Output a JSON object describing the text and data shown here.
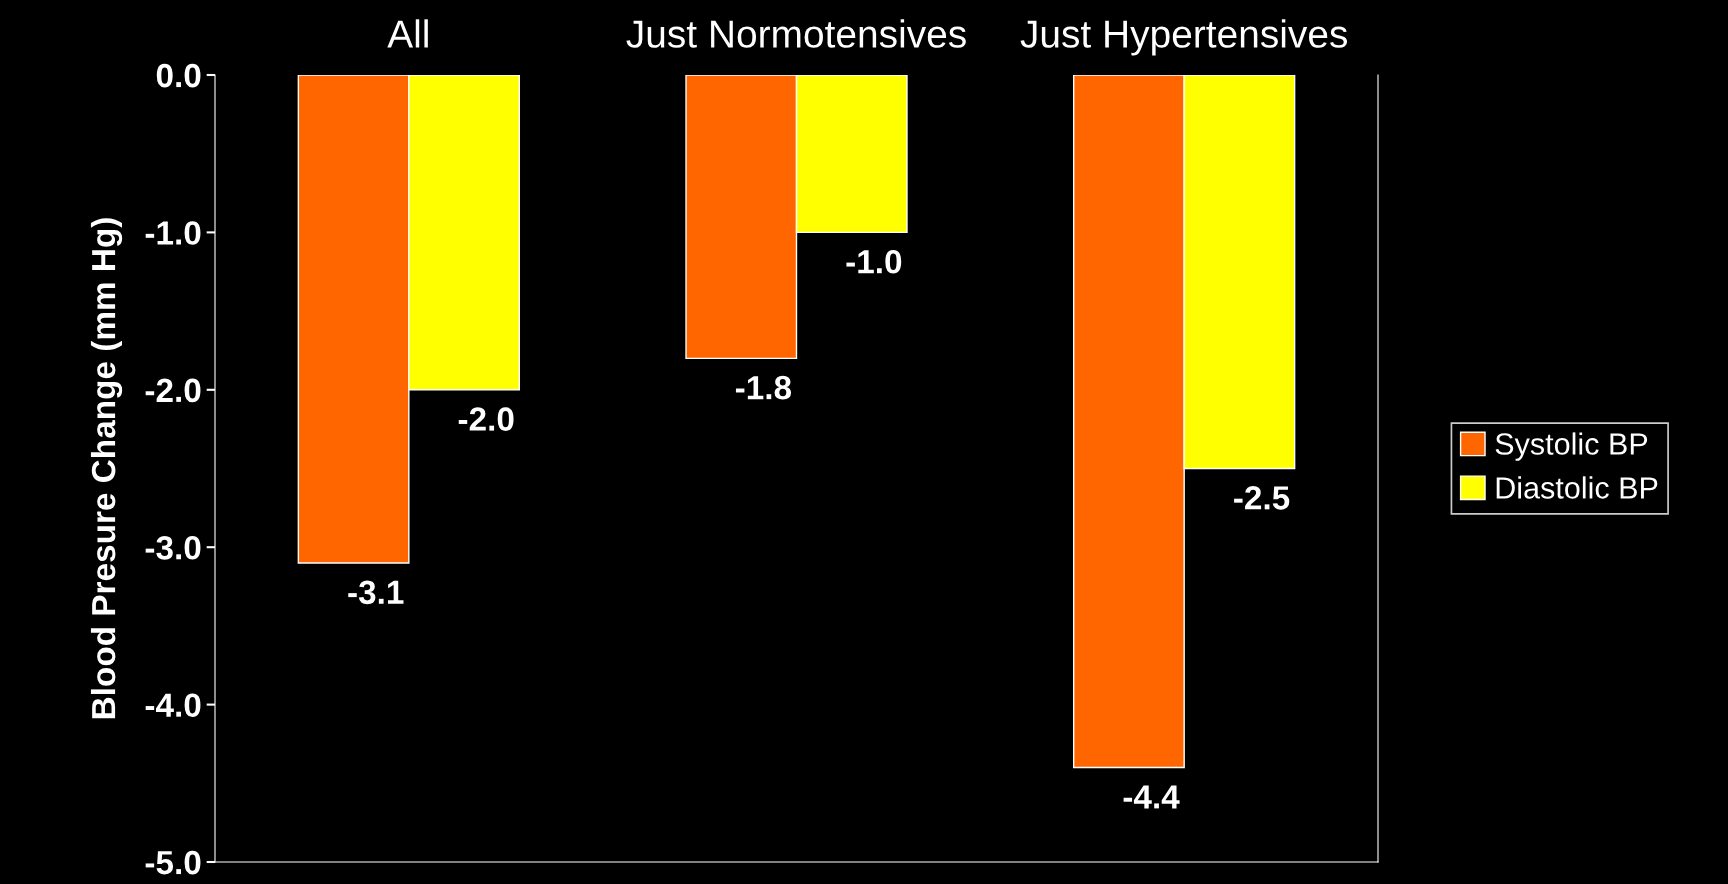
{
  "chart_data": {
    "type": "bar",
    "categories": [
      "All",
      "Just Normotensives",
      "Just Hypertensives"
    ],
    "ylabel": "Blood Presure Change (mm Hg)",
    "series": [
      {
        "name": "Systolic BP",
        "color": "#ff6600",
        "values": [
          -3.1,
          -1.8,
          -4.4
        ],
        "value_labels": [
          "-3.1",
          "-1.8",
          "-4.4"
        ]
      },
      {
        "name": "Diastolic BP",
        "color": "#ffff00",
        "values": [
          -2.0,
          -1.0,
          -2.5
        ],
        "value_labels": [
          "-2.0",
          "-1.0",
          "-2.5"
        ]
      }
    ],
    "ylim": [
      -5,
      0
    ],
    "yticks": [
      {
        "value": 0,
        "label": "0.0"
      },
      {
        "value": -1,
        "label": "-1.0"
      },
      {
        "value": -2,
        "label": "-2.0"
      },
      {
        "value": -3,
        "label": "-3.0"
      },
      {
        "value": -4,
        "label": "-4.0"
      },
      {
        "value": -5,
        "label": "-5.0"
      }
    ],
    "legend": "right",
    "grid": false
  }
}
